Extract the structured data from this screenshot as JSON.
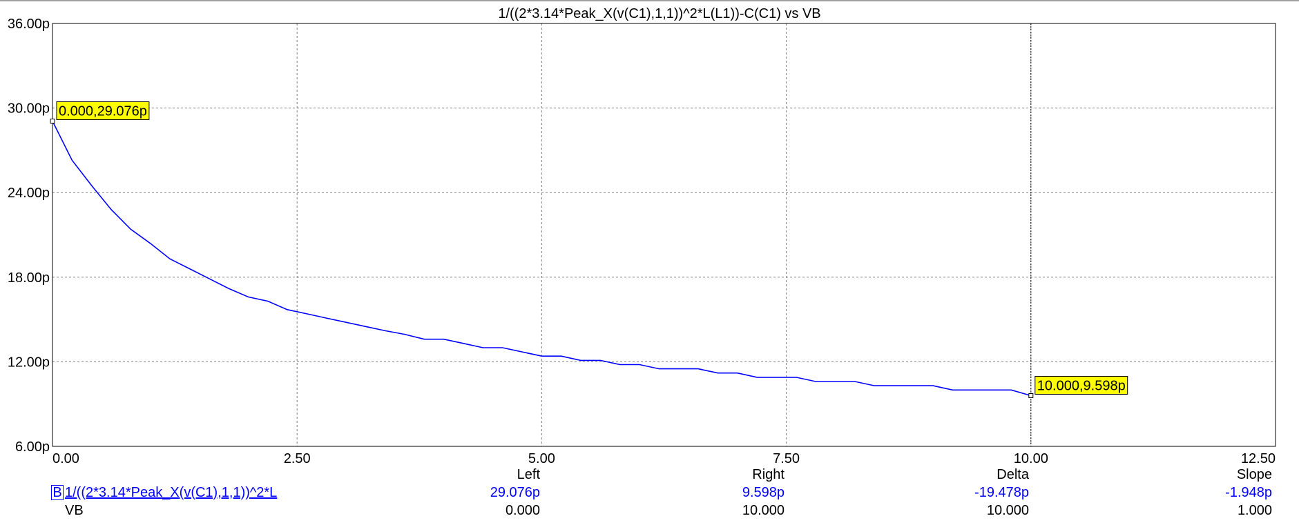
{
  "chart_data": {
    "type": "line",
    "title": "1/((2*3.14*Peak_X(v(C1),1,1))^2*L(L1))-C(C1) vs VB",
    "xlim": [
      0,
      12.5
    ],
    "ylim": [
      6,
      36
    ],
    "x_ticks": [
      "0.00",
      "2.50",
      "5.00",
      "7.50",
      "10.00",
      "12.50"
    ],
    "y_ticks": [
      "6.00p",
      "12.00p",
      "18.00p",
      "24.00p",
      "30.00p",
      "36.00p"
    ],
    "y_tick_values": [
      6,
      12,
      18,
      24,
      30,
      36
    ],
    "x_tick_values": [
      0,
      2.5,
      5,
      7.5,
      10,
      12.5
    ],
    "grid": true,
    "series": [
      {
        "color": "#0000ff",
        "x": [
          0,
          0.2,
          0.4,
          0.6,
          0.8,
          1.0,
          1.2,
          1.4,
          1.6,
          1.8,
          2.0,
          2.2,
          2.4,
          2.6,
          2.8,
          3.0,
          3.2,
          3.4,
          3.6,
          3.8,
          4.0,
          4.2,
          4.4,
          4.6,
          4.8,
          5.0,
          5.2,
          5.4,
          5.6,
          5.8,
          6.0,
          6.2,
          6.4,
          6.6,
          6.8,
          7.0,
          7.2,
          7.4,
          7.6,
          7.8,
          8.0,
          8.2,
          8.4,
          8.6,
          8.8,
          9.0,
          9.2,
          9.4,
          9.6,
          9.8,
          10.0
        ],
        "y": [
          29.076,
          26.3,
          24.5,
          22.8,
          21.4,
          20.4,
          19.3,
          18.6,
          17.9,
          17.2,
          16.6,
          16.3,
          15.7,
          15.4,
          15.1,
          14.8,
          14.5,
          14.2,
          13.95,
          13.6,
          13.6,
          13.3,
          13.0,
          13.0,
          12.7,
          12.4,
          12.4,
          12.1,
          12.1,
          11.8,
          11.8,
          11.5,
          11.5,
          11.5,
          11.2,
          11.2,
          10.9,
          10.9,
          10.9,
          10.6,
          10.6,
          10.6,
          10.3,
          10.3,
          10.3,
          10.3,
          10.0,
          10.0,
          10.0,
          10.0,
          9.598
        ]
      }
    ],
    "cursors": [
      {
        "x": 0.0,
        "y": 29.076,
        "label": "0.000,29.076p"
      },
      {
        "x": 10.0,
        "y": 9.598,
        "label": "10.000,9.598p"
      }
    ]
  },
  "readout": {
    "headers": {
      "left": "Left",
      "right": "Right",
      "delta": "Delta",
      "slope": "Slope"
    },
    "trace_box": "B",
    "trace_name": "1/((2*3.14*Peak_X(v(C1),1,1))^2*L",
    "trace_values": {
      "left": "29.076p",
      "right": "9.598p",
      "delta": "-19.478p",
      "slope": "-1.948p"
    },
    "xvar_name": "VB",
    "xvar_values": {
      "left": "0.000",
      "right": "10.000",
      "delta": "10.000",
      "slope": "1.000"
    }
  }
}
